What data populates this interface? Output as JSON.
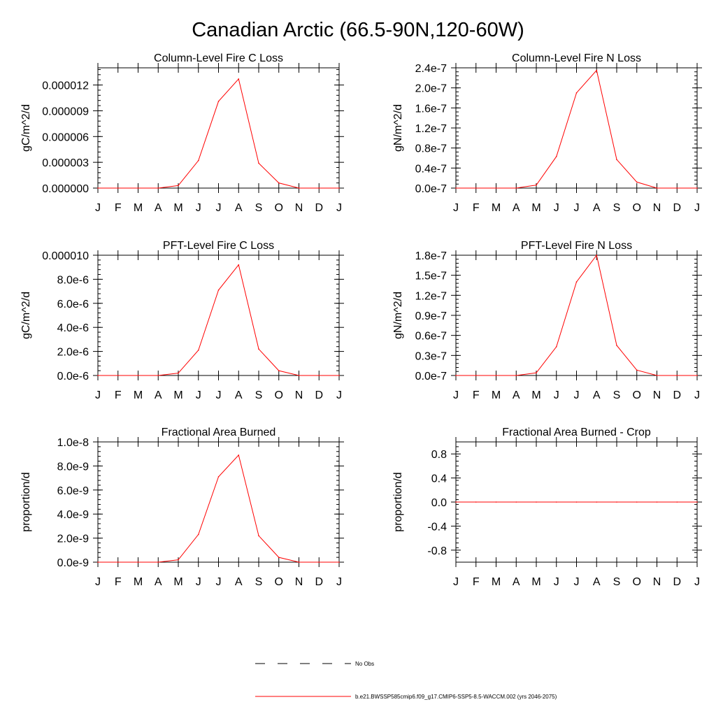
{
  "figure": {
    "title": "Canadian Arctic (66.5-90N,120-60W)"
  },
  "colors": {
    "series": "#ff0000",
    "obs": "#000000",
    "axis": "#000000"
  },
  "legend": {
    "items": [
      {
        "label": "No Obs",
        "style": "dashed",
        "color": "#000000"
      },
      {
        "label": "b.e21.BWSSP585cmip6.f09_g17.CMIP6-SSP5-8.5-WACCM.002 (yrs 2046-2075)",
        "style": "solid",
        "color": "#ff0000"
      }
    ]
  },
  "chart_data": [
    {
      "type": "line",
      "title": "Column-Level Fire C Loss",
      "xlabel": "",
      "ylabel": "gC/m^2/d",
      "categories": [
        "J",
        "F",
        "M",
        "A",
        "M",
        "J",
        "J",
        "A",
        "S",
        "O",
        "N",
        "D",
        "J"
      ],
      "ylim": [
        0,
        1.4e-05
      ],
      "yticks": [
        0,
        3e-06,
        6e-06,
        9e-06,
        1.2e-05
      ],
      "ytick_labels": [
        "0.000000",
        "0.000003",
        "0.000006",
        "0.000009",
        "0.000012"
      ],
      "series": [
        {
          "name": "b.e21.BWSSP585cmip6.f09_g17.CMIP6-SSP5-8.5-WACCM.002 (yrs 2046-2075)",
          "values": [
            0,
            0,
            0,
            0,
            3e-07,
            3.2e-06,
            1.01e-05,
            1.27e-05,
            2.9e-06,
            6e-07,
            0,
            0,
            0
          ]
        }
      ]
    },
    {
      "type": "line",
      "title": "Column-Level Fire N Loss",
      "xlabel": "",
      "ylabel": "gN/m^2/d",
      "categories": [
        "J",
        "F",
        "M",
        "A",
        "M",
        "J",
        "J",
        "A",
        "S",
        "O",
        "N",
        "D",
        "J"
      ],
      "ylim": [
        0,
        2.4e-07
      ],
      "yticks": [
        0,
        4e-08,
        8e-08,
        1.2e-07,
        1.6e-07,
        2e-07,
        2.4e-07
      ],
      "ytick_labels": [
        "0.0e-7",
        "0.4e-7",
        "0.8e-7",
        "1.2e-7",
        "1.6e-7",
        "2.0e-7",
        "2.4e-7"
      ],
      "series": [
        {
          "name": "b.e21.BWSSP585cmip6.f09_g17.CMIP6-SSP5-8.5-WACCM.002 (yrs 2046-2075)",
          "values": [
            0,
            0,
            0,
            0,
            6e-09,
            6.3e-08,
            1.9e-07,
            2.35e-07,
            5.7e-08,
            1.2e-08,
            0,
            0,
            0
          ]
        }
      ]
    },
    {
      "type": "line",
      "title": "PFT-Level Fire C Loss",
      "xlabel": "",
      "ylabel": "gC/m^2/d",
      "categories": [
        "J",
        "F",
        "M",
        "A",
        "M",
        "J",
        "J",
        "A",
        "S",
        "O",
        "N",
        "D",
        "J"
      ],
      "ylim": [
        0,
        1e-05
      ],
      "yticks": [
        0,
        2e-06,
        4e-06,
        6e-06,
        8e-06,
        1e-05
      ],
      "ytick_labels": [
        "0.0e-6",
        "2.0e-6",
        "4.0e-6",
        "6.0e-6",
        "8.0e-6",
        "0.000010"
      ],
      "series": [
        {
          "name": "b.e21.BWSSP585cmip6.f09_g17.CMIP6-SSP5-8.5-WACCM.002 (yrs 2046-2075)",
          "values": [
            0,
            0,
            0,
            0,
            2e-07,
            2.1e-06,
            7.1e-06,
            9.2e-06,
            2.2e-06,
            4e-07,
            0,
            0,
            0
          ]
        }
      ]
    },
    {
      "type": "line",
      "title": "PFT-Level Fire N Loss",
      "xlabel": "",
      "ylabel": "gN/m^2/d",
      "categories": [
        "J",
        "F",
        "M",
        "A",
        "M",
        "J",
        "J",
        "A",
        "S",
        "O",
        "N",
        "D",
        "J"
      ],
      "ylim": [
        0,
        1.8e-07
      ],
      "yticks": [
        0,
        3e-08,
        6e-08,
        9e-08,
        1.2e-07,
        1.5e-07,
        1.8e-07
      ],
      "ytick_labels": [
        "0.0e-7",
        "0.3e-7",
        "0.6e-7",
        "0.9e-7",
        "1.2e-7",
        "1.5e-7",
        "1.8e-7"
      ],
      "series": [
        {
          "name": "b.e21.BWSSP585cmip6.f09_g17.CMIP6-SSP5-8.5-WACCM.002 (yrs 2046-2075)",
          "values": [
            0,
            0,
            0,
            0,
            4e-09,
            4.3e-08,
            1.4e-07,
            1.8e-07,
            4.5e-08,
            8e-09,
            0,
            0,
            0
          ]
        }
      ]
    },
    {
      "type": "line",
      "title": "Fractional Area Burned",
      "xlabel": "",
      "ylabel": "proportion/d",
      "categories": [
        "J",
        "F",
        "M",
        "A",
        "M",
        "J",
        "J",
        "A",
        "S",
        "O",
        "N",
        "D",
        "J"
      ],
      "ylim": [
        0,
        1e-08
      ],
      "yticks": [
        0,
        2e-09,
        4e-09,
        6e-09,
        8e-09,
        1e-08
      ],
      "ytick_labels": [
        "0.0e-9",
        "2.0e-9",
        "4.0e-9",
        "6.0e-9",
        "8.0e-9",
        "1.0e-8"
      ],
      "series": [
        {
          "name": "b.e21.BWSSP585cmip6.f09_g17.CMIP6-SSP5-8.5-WACCM.002 (yrs 2046-2075)",
          "values": [
            0,
            0,
            0,
            0,
            2e-10,
            2.3e-09,
            7.1e-09,
            8.9e-09,
            2.2e-09,
            4e-10,
            0,
            0,
            0
          ]
        }
      ]
    },
    {
      "type": "line",
      "title": "Fractional Area Burned - Crop",
      "xlabel": "",
      "ylabel": "proportion/d",
      "categories": [
        "J",
        "F",
        "M",
        "A",
        "M",
        "J",
        "J",
        "A",
        "S",
        "O",
        "N",
        "D",
        "J"
      ],
      "ylim": [
        -1.0,
        1.0
      ],
      "yticks": [
        -0.8,
        -0.4,
        0.0,
        0.4,
        0.8
      ],
      "ytick_labels": [
        "-0.8",
        "-0.4",
        "0.0",
        "0.4",
        "0.8"
      ],
      "series": [
        {
          "name": "b.e21.BWSSP585cmip6.f09_g17.CMIP6-SSP5-8.5-WACCM.002 (yrs 2046-2075)",
          "values": [
            0,
            0,
            0,
            0,
            0,
            0,
            0,
            0,
            0,
            0,
            0,
            0,
            0
          ]
        }
      ]
    }
  ]
}
